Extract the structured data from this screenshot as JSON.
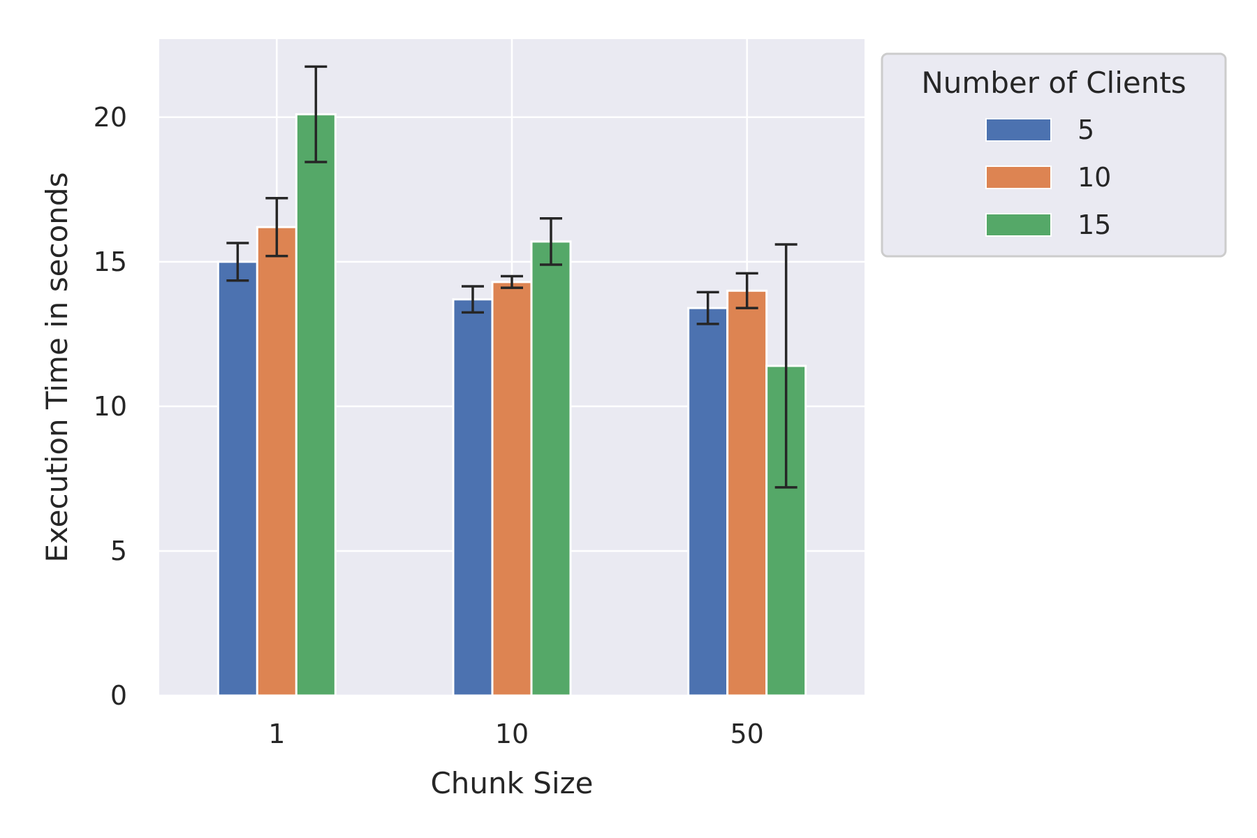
{
  "chart_data": {
    "type": "bar",
    "xlabel": "Chunk Size",
    "ylabel": "Execution Time in seconds",
    "categories": [
      "1",
      "10",
      "50"
    ],
    "ylim": [
      0,
      22.7
    ],
    "yticks": [
      0,
      5,
      10,
      15,
      20
    ],
    "grid": true,
    "legend": {
      "title": "Number of Clients",
      "placement": "outside-right-top"
    },
    "series": [
      {
        "name": "5",
        "color": "#4c72b0",
        "values": [
          15.0,
          13.7,
          13.4
        ],
        "error": [
          0.65,
          0.45,
          0.55
        ]
      },
      {
        "name": "10",
        "color": "#dd8452",
        "values": [
          16.2,
          14.3,
          14.0
        ],
        "error": [
          1.0,
          0.2,
          0.6
        ]
      },
      {
        "name": "15",
        "color": "#55a868",
        "values": [
          20.1,
          15.7,
          11.4
        ],
        "error": [
          1.65,
          0.8,
          4.2
        ]
      }
    ]
  },
  "colors": {
    "plot_background": "#eaeaf2",
    "grid": "#ffffff",
    "error_bar": "#262626"
  }
}
